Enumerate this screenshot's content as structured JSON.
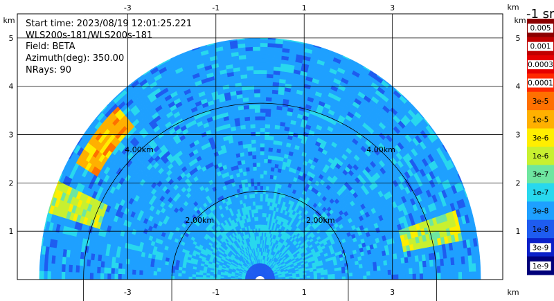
{
  "chart_data": {
    "type": "heatmap",
    "subtype": "polar-rhi-scan",
    "info_lines": [
      "Start time: 2023/08/19 12:01:25.221",
      "WLS200s-181/WLS200s-181",
      "Field: BETA",
      "Azimuth(deg): 350.00",
      "NRays: 90"
    ],
    "x_axis": {
      "unit": "km",
      "range": [
        -5.5,
        5.5
      ],
      "ticks": [
        -3,
        -1,
        1,
        3
      ],
      "tick_labels": [
        "-3",
        "-1",
        "1",
        "3"
      ]
    },
    "y_axis": {
      "unit": "km",
      "range": [
        0,
        5.5
      ],
      "ticks": [
        1,
        2,
        3,
        4,
        5
      ],
      "tick_labels": [
        "1",
        "2",
        "3",
        "4",
        "5"
      ]
    },
    "grid": true,
    "range_rings": [
      {
        "radius_km": 2,
        "label": "2.00km"
      },
      {
        "radius_km": 4,
        "label": "4.00km"
      }
    ],
    "max_range_km": 5.0,
    "elevation_range_deg": [
      0,
      180
    ],
    "colorbar": {
      "unit_label": "-1 sr",
      "levels": [
        "0.005",
        "0.001",
        "0.0003",
        "0.0001",
        "3e-5",
        "1e-5",
        "3e-6",
        "1e-6",
        "3e-7",
        "1e-7",
        "3e-8",
        "1e-8",
        "3e-9",
        "1e-9"
      ],
      "colors": [
        "#8b0000",
        "#c00000",
        "#e60000",
        "#ff2a00",
        "#ff7000",
        "#ffb000",
        "#ffee00",
        "#c8f030",
        "#6ee6a0",
        "#28d8ee",
        "#1ea0ff",
        "#1e5cf0",
        "#0a20c8",
        "#00007a"
      ]
    },
    "features": [
      {
        "name": "aerosol-layer-high",
        "elevation_deg": [
          132,
          150
        ],
        "range_km": [
          4.3,
          4.8
        ],
        "level_range": [
          "3e-6",
          "3e-5"
        ]
      },
      {
        "name": "aerosol-layer-low-left",
        "elevation_deg": [
          157,
          165
        ],
        "range_km": [
          3.8,
          5.0
        ],
        "level_range": [
          "3e-7",
          "3e-6"
        ]
      },
      {
        "name": "aerosol-layer-low-right",
        "elevation_deg": [
          10,
          18
        ],
        "range_km": [
          3.3,
          4.7
        ],
        "level_range": [
          "3e-7",
          "3e-6"
        ]
      },
      {
        "name": "near-field",
        "elevation_deg": [
          0,
          180
        ],
        "range_km": [
          0,
          1.5
        ],
        "level_range": [
          "3e-8",
          "3e-7"
        ]
      }
    ]
  }
}
